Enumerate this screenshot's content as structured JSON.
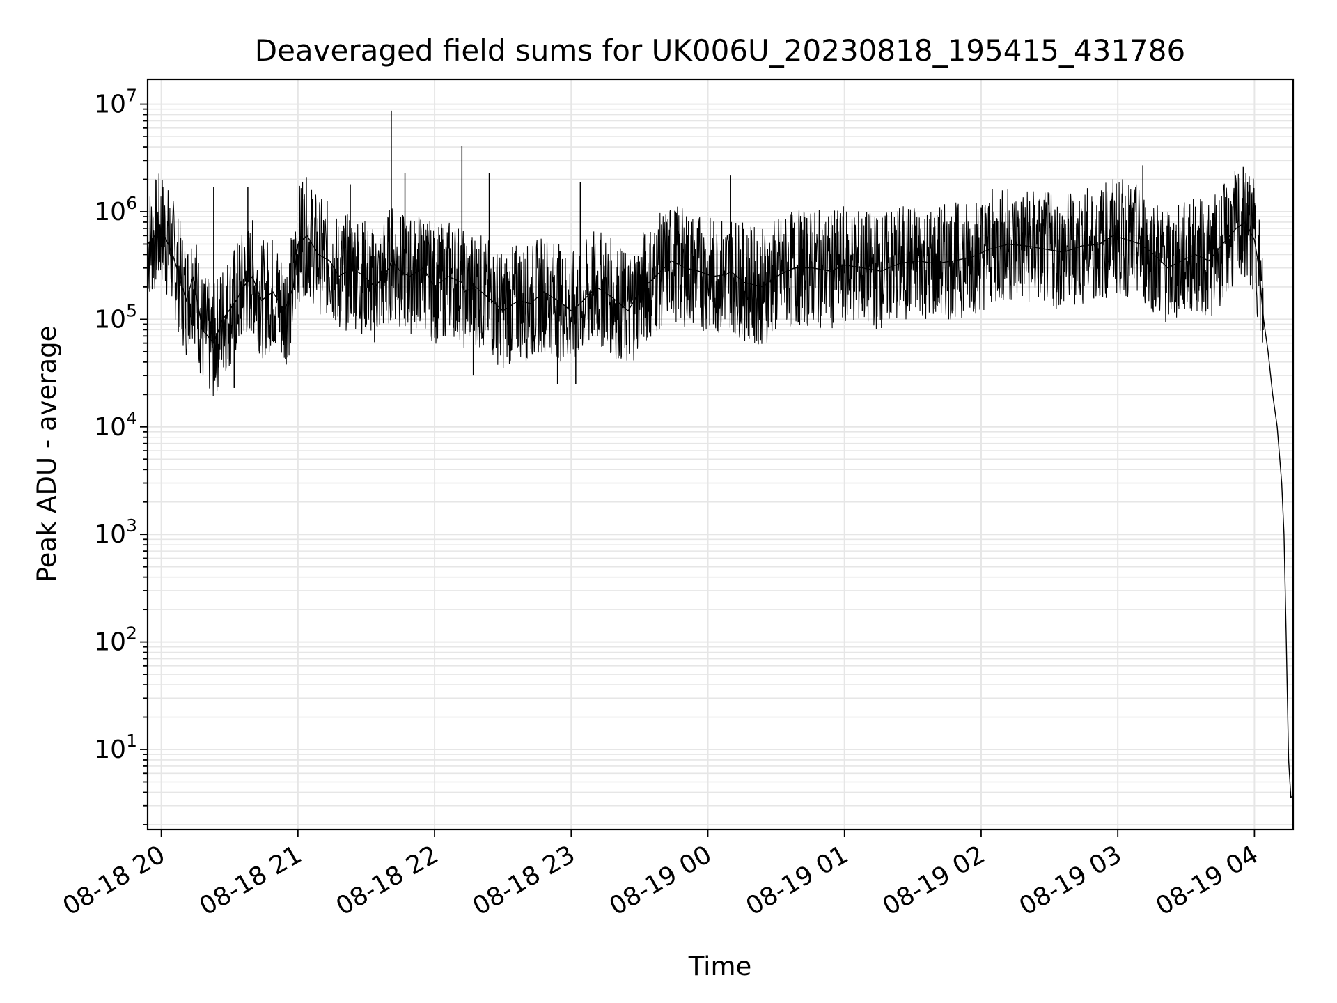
{
  "chart_data": {
    "type": "line",
    "title": "Deaveraged field sums for UK006U_20230818_195415_431786",
    "xlabel": "Time",
    "ylabel": "Peak ADU - average",
    "yscale": "log",
    "ylim": [
      1.8,
      17000000
    ],
    "xlim": [
      "2023-08-18 19:54",
      "2023-08-19 04:17"
    ],
    "grid": true,
    "line_color": "#000000",
    "grid_color": "#e6e6e6",
    "x_ticks": [
      {
        "t": "2023-08-18 20:00",
        "label": "08-18 20"
      },
      {
        "t": "2023-08-18 21:00",
        "label": "08-18 21"
      },
      {
        "t": "2023-08-18 22:00",
        "label": "08-18 22"
      },
      {
        "t": "2023-08-18 23:00",
        "label": "08-18 23"
      },
      {
        "t": "2023-08-19 00:00",
        "label": "08-19 00"
      },
      {
        "t": "2023-08-19 01:00",
        "label": "08-19 01"
      },
      {
        "t": "2023-08-19 02:00",
        "label": "08-19 02"
      },
      {
        "t": "2023-08-19 03:00",
        "label": "08-19 03"
      },
      {
        "t": "2023-08-19 04:00",
        "label": "08-19 04"
      }
    ],
    "y_ticks": [
      {
        "value": 10,
        "base": "10",
        "exp": "1"
      },
      {
        "value": 100,
        "base": "10",
        "exp": "2"
      },
      {
        "value": 1000,
        "base": "10",
        "exp": "3"
      },
      {
        "value": 10000,
        "base": "10",
        "exp": "4"
      },
      {
        "value": 100000,
        "base": "10",
        "exp": "5"
      },
      {
        "value": 1000000,
        "base": "10",
        "exp": "6"
      },
      {
        "value": 10000000,
        "base": "10",
        "exp": "7"
      }
    ],
    "series": [
      {
        "x": [
          "2023-08-18 19:54",
          "2023-08-18 20:00",
          "2023-08-18 20:05",
          "2023-08-18 20:11",
          "2023-08-18 20:14",
          "2023-08-18 20:18",
          "2023-08-18 20:23",
          "2023-08-18 20:27",
          "2023-08-18 20:33",
          "2023-08-18 20:36",
          "2023-08-18 20:40",
          "2023-08-18 20:44",
          "2023-08-18 20:49",
          "2023-08-18 20:54",
          "2023-08-18 20:58",
          "2023-08-18 21:00",
          "2023-08-18 21:04",
          "2023-08-18 21:09",
          "2023-08-18 21:14",
          "2023-08-18 21:18",
          "2023-08-18 21:24",
          "2023-08-18 21:29",
          "2023-08-18 21:34",
          "2023-08-18 21:40",
          "2023-08-18 21:41",
          "2023-08-18 21:45",
          "2023-08-18 21:49",
          "2023-08-18 21:55",
          "2023-08-18 22:00",
          "2023-08-18 22:06",
          "2023-08-18 22:12",
          "2023-08-18 22:13",
          "2023-08-18 22:18",
          "2023-08-18 22:25",
          "2023-08-18 22:30",
          "2023-08-18 22:37",
          "2023-08-18 22:42",
          "2023-08-18 22:48",
          "2023-08-18 22:54",
          "2023-08-18 23:00",
          "2023-08-18 23:04",
          "2023-08-18 23:11",
          "2023-08-18 23:18",
          "2023-08-18 23:25",
          "2023-08-18 23:30",
          "2023-08-18 23:37",
          "2023-08-18 23:44",
          "2023-08-18 23:50",
          "2023-08-18 23:56",
          "2023-08-19 00:02",
          "2023-08-19 00:08",
          "2023-08-19 00:10",
          "2023-08-19 00:16",
          "2023-08-19 00:24",
          "2023-08-19 00:30",
          "2023-08-19 00:38",
          "2023-08-19 00:46",
          "2023-08-19 00:54",
          "2023-08-19 01:00",
          "2023-08-19 01:08",
          "2023-08-19 01:16",
          "2023-08-19 01:24",
          "2023-08-19 01:32",
          "2023-08-19 01:40",
          "2023-08-19 01:48",
          "2023-08-19 01:56",
          "2023-08-19 02:04",
          "2023-08-19 02:12",
          "2023-08-19 02:20",
          "2023-08-19 02:28",
          "2023-08-19 02:36",
          "2023-08-19 02:44",
          "2023-08-19 02:52",
          "2023-08-19 02:58",
          "2023-08-19 03:04",
          "2023-08-19 03:10",
          "2023-08-19 03:16",
          "2023-08-19 03:22",
          "2023-08-19 03:28",
          "2023-08-19 03:34",
          "2023-08-19 03:40",
          "2023-08-19 03:46",
          "2023-08-19 03:52",
          "2023-08-19 03:56",
          "2023-08-19 04:00",
          "2023-08-19 04:02",
          "2023-08-19 04:04",
          "2023-08-19 04:06",
          "2023-08-19 04:08",
          "2023-08-19 04:10",
          "2023-08-19 04:12",
          "2023-08-19 04:13",
          "2023-08-19 04:14",
          "2023-08-19 04:15",
          "2023-08-19 04:16",
          "2023-08-19 04:17"
        ],
        "y": [
          500000,
          700000,
          400000,
          150000,
          250000,
          80000,
          60000,
          100000,
          150000,
          200000,
          250000,
          150000,
          180000,
          120000,
          200000,
          500000,
          600000,
          400000,
          350000,
          250000,
          300000,
          250000,
          200000,
          300000,
          350000,
          280000,
          250000,
          300000,
          200000,
          250000,
          220000,
          180000,
          200000,
          150000,
          120000,
          150000,
          140000,
          180000,
          150000,
          120000,
          140000,
          200000,
          160000,
          120000,
          180000,
          250000,
          350000,
          300000,
          280000,
          250000,
          260000,
          280000,
          220000,
          200000,
          250000,
          300000,
          300000,
          280000,
          320000,
          300000,
          280000,
          330000,
          350000,
          330000,
          350000,
          380000,
          450000,
          500000,
          480000,
          450000,
          420000,
          480000,
          500000,
          600000,
          550000,
          500000,
          400000,
          300000,
          350000,
          400000,
          350000,
          500000,
          700000,
          800000,
          550000,
          300000,
          100000,
          50000,
          20000,
          10000,
          3000,
          1000,
          100,
          8,
          3.6,
          3.7
        ]
      }
    ],
    "spikes": [
      {
        "t": "2023-08-18 20:23",
        "value": 1700000
      },
      {
        "t": "2023-08-18 20:38",
        "value": 1700000
      },
      {
        "t": "2023-08-18 20:32",
        "value": 23000
      },
      {
        "t": "2023-08-18 21:02",
        "value": 1900000
      },
      {
        "t": "2023-08-18 21:23",
        "value": 1800000
      },
      {
        "t": "2023-08-18 21:41",
        "value": 8700000
      },
      {
        "t": "2023-08-18 21:47",
        "value": 2300000
      },
      {
        "t": "2023-08-18 22:12",
        "value": 4100000
      },
      {
        "t": "2023-08-18 22:24",
        "value": 2300000
      },
      {
        "t": "2023-08-18 22:17",
        "value": 30000
      },
      {
        "t": "2023-08-18 22:54",
        "value": 25000
      },
      {
        "t": "2023-08-18 23:02",
        "value": 25000
      },
      {
        "t": "2023-08-18 23:04",
        "value": 1900000
      },
      {
        "t": "2023-08-19 00:10",
        "value": 2200000
      },
      {
        "t": "2023-08-19 02:00",
        "value": 1100000
      },
      {
        "t": "2023-08-19 03:11",
        "value": 2700000
      },
      {
        "t": "2023-08-19 03:57",
        "value": 1900000
      }
    ]
  }
}
